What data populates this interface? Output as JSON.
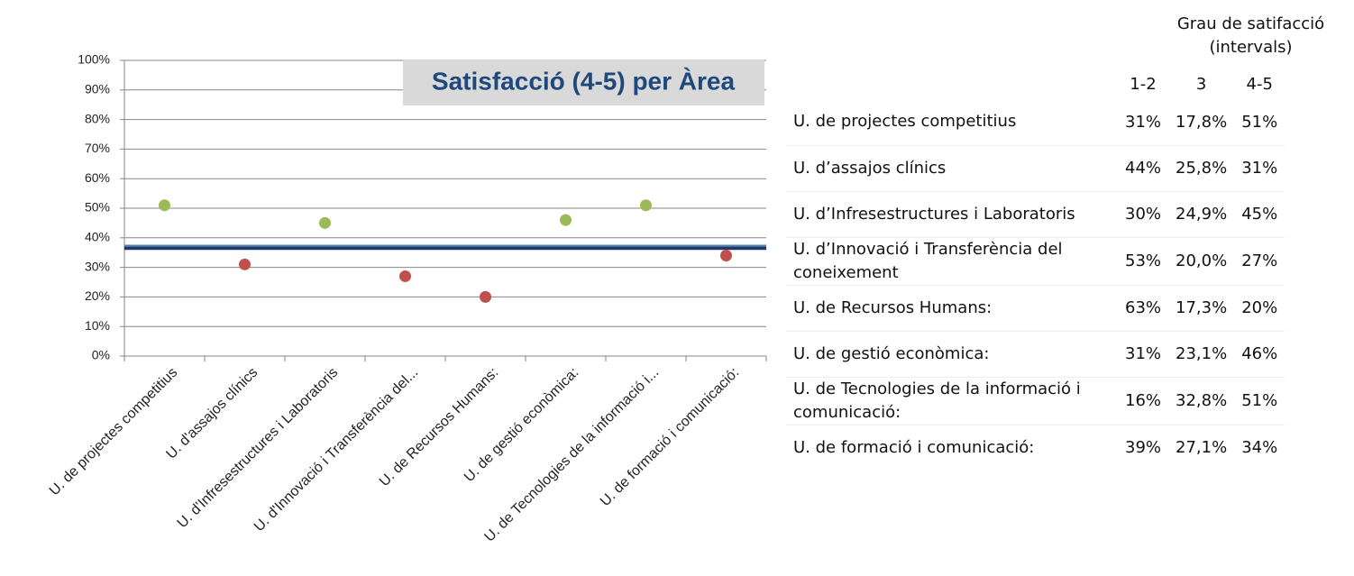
{
  "chart_data": {
    "type": "dot",
    "title": "Satisfacció (4-5) per Àrea",
    "categories": [
      "U. de projectes competitius",
      "U. d'assajos clínics",
      "U. d'Infresestructures i Laboratoris",
      "U. d'Innovació i Transferència del...",
      "U. de Recursos Humans:",
      "U. de gestió econòmica:",
      "U. de Tecnologies de la informació i...",
      "U. de formació i comunicació:"
    ],
    "values": [
      51,
      31,
      45,
      27,
      20,
      46,
      51,
      34
    ],
    "colors": [
      "#9bbb59",
      "#c0504d",
      "#9bbb59",
      "#c0504d",
      "#c0504d",
      "#9bbb59",
      "#9bbb59",
      "#c0504d"
    ],
    "reference_line": 36.5,
    "reference_color": "#1f3864",
    "ylim": [
      0,
      100
    ],
    "yticks": [
      {
        "value": 0,
        "label": "0%"
      },
      {
        "value": 10,
        "label": "10%"
      },
      {
        "value": 20,
        "label": "20%"
      },
      {
        "value": 30,
        "label": "30%"
      },
      {
        "value": 40,
        "label": "40%"
      },
      {
        "value": 50,
        "label": "50%"
      },
      {
        "value": 60,
        "label": "60%"
      },
      {
        "value": 70,
        "label": "70%"
      },
      {
        "value": 80,
        "label": "80%"
      },
      {
        "value": 90,
        "label": "90%"
      },
      {
        "value": 100,
        "label": "100%"
      }
    ],
    "grid": true
  },
  "table": {
    "title": "Grau de satifacció (intervals)",
    "columns": [
      "1-2",
      "3",
      "4-5"
    ],
    "rows": [
      [
        "U. de projectes competitius",
        "31%",
        "17,8%",
        "51%"
      ],
      [
        "U. d’assajos clínics",
        "44%",
        "25,8%",
        "31%"
      ],
      [
        "U. d’Infresestructures i Laboratoris",
        "30%",
        "24,9%",
        "45%"
      ],
      [
        "U. d’Innovació i Transferència del coneixement",
        "53%",
        "20,0%",
        "27%"
      ],
      [
        "U. de Recursos Humans:",
        "63%",
        "17,3%",
        "20%"
      ],
      [
        "U. de gestió econòmica:",
        "31%",
        "23,1%",
        "46%"
      ],
      [
        "U. de Tecnologies de la informació i comunicació:",
        "16%",
        "32,8%",
        "51%"
      ],
      [
        "U. de formació i comunicació:",
        "39%",
        "27,1%",
        "34%"
      ]
    ]
  }
}
